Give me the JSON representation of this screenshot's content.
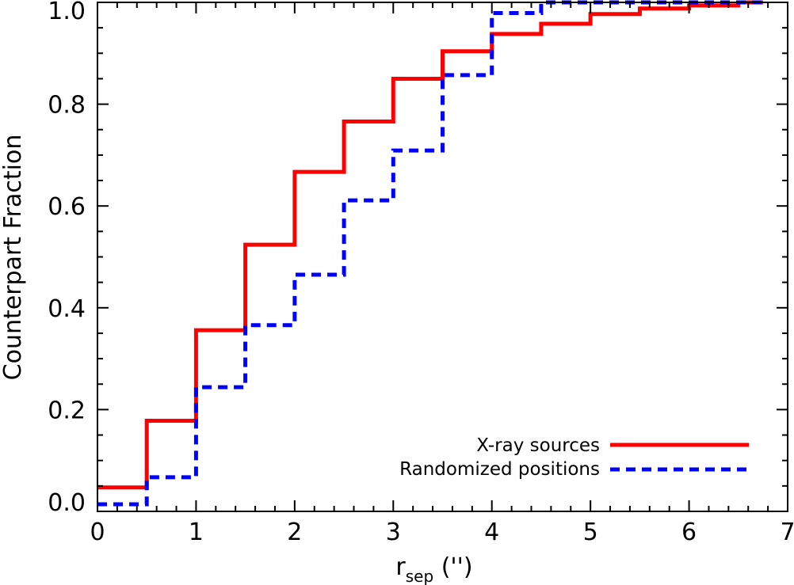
{
  "chart_data": {
    "type": "line",
    "step": true,
    "xlabel": {
      "main": "r",
      "sub": "sep",
      "suffix": " ('')"
    },
    "ylabel": "Counterpart Fraction",
    "xlim": [
      0,
      7
    ],
    "ylim": [
      0,
      1.0
    ],
    "xticks": [
      0,
      1,
      2,
      3,
      4,
      5,
      6,
      7
    ],
    "xtick_labels": [
      "0",
      "1",
      "2",
      "3",
      "4",
      "5",
      "6",
      "7"
    ],
    "yticks": [
      0.0,
      0.2,
      0.4,
      0.6,
      0.8,
      1.0
    ],
    "ytick_labels": [
      "0.0",
      "0.2",
      "0.4",
      "0.6",
      "0.8",
      "1.0"
    ],
    "grid": false,
    "legend_position": "bottom-right",
    "series": [
      {
        "name": "X-ray sources",
        "color": "#ff0000",
        "style": "solid",
        "x": [
          0,
          0.5,
          1.0,
          1.5,
          2.0,
          2.5,
          3.0,
          3.5,
          4.0,
          4.5,
          5.0,
          5.5,
          6.0,
          6.5,
          6.75
        ],
        "y": [
          0.047,
          0.178,
          0.356,
          0.524,
          0.667,
          0.766,
          0.85,
          0.904,
          0.938,
          0.958,
          0.977,
          0.988,
          0.994,
          1.0,
          1.0
        ]
      },
      {
        "name": "Randomized positions",
        "color": "#0000ff",
        "style": "dashed",
        "x": [
          0,
          0.5,
          1.0,
          1.5,
          2.0,
          2.5,
          3.0,
          3.5,
          4.0,
          4.5,
          5.0,
          5.5,
          6.0,
          6.5,
          6.75
        ],
        "y": [
          0.014,
          0.067,
          0.244,
          0.366,
          0.465,
          0.611,
          0.709,
          0.857,
          0.979,
          1.0,
          1.0,
          1.0,
          1.0,
          1.0,
          1.0
        ]
      }
    ]
  }
}
